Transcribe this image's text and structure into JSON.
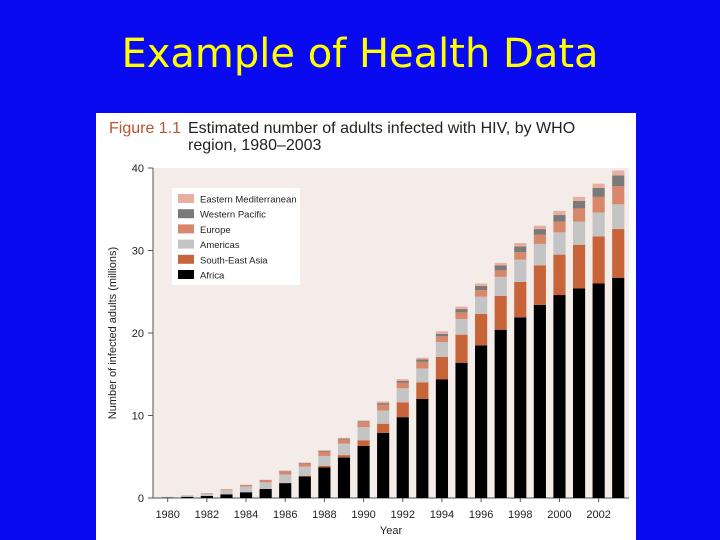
{
  "slide": {
    "title": "Example of Health Data"
  },
  "figure": {
    "label": "Figure 1.1",
    "caption": "Estimated number of adults infected with HIV, by WHO region, 1980–2003"
  },
  "colors": {
    "background": "#0a0af0",
    "title": "#ffff00",
    "plot_background": "#f3ece9"
  },
  "chart_data": {
    "type": "bar",
    "stacked": true,
    "title": "Estimated number of adults infected with HIV, by WHO region, 1980–2003",
    "xlabel": "Year",
    "ylabel": "Number of infected adults (millions)",
    "ylim": [
      0,
      40
    ],
    "yticks": [
      0,
      10,
      20,
      30,
      40
    ],
    "xtick_labels": [
      "1980",
      "1982",
      "1984",
      "1986",
      "1988",
      "1990",
      "1992",
      "1994",
      "1996",
      "1998",
      "2000",
      "2002"
    ],
    "categories": [
      "1980",
      "1981",
      "1982",
      "1983",
      "1984",
      "1985",
      "1986",
      "1987",
      "1988",
      "1989",
      "1990",
      "1991",
      "1992",
      "1993",
      "1994",
      "1995",
      "1996",
      "1997",
      "1998",
      "1999",
      "2000",
      "2001",
      "2002",
      "2003"
    ],
    "legend_position": "top-left",
    "grid": false,
    "series": [
      {
        "name": "Africa",
        "color": "#000000",
        "values": [
          0.05,
          0.15,
          0.25,
          0.45,
          0.7,
          1.1,
          1.8,
          2.6,
          3.7,
          4.9,
          6.3,
          7.9,
          9.8,
          12.0,
          14.4,
          16.4,
          18.5,
          20.4,
          21.9,
          23.4,
          24.6,
          25.4,
          26.0,
          26.7
        ]
      },
      {
        "name": "South-East Asia",
        "color": "#c8643a",
        "values": [
          0.0,
          0.0,
          0.0,
          0.0,
          0.0,
          0.0,
          0.05,
          0.1,
          0.2,
          0.3,
          0.7,
          1.1,
          1.8,
          2.0,
          2.7,
          3.4,
          3.8,
          4.1,
          4.3,
          4.8,
          4.9,
          5.3,
          5.7,
          5.9
        ]
      },
      {
        "name": "Americas",
        "color": "#c4c4c4",
        "values": [
          0.1,
          0.2,
          0.3,
          0.5,
          0.7,
          0.8,
          1.0,
          1.1,
          1.2,
          1.4,
          1.6,
          1.6,
          1.7,
          1.7,
          1.8,
          1.9,
          2.1,
          2.3,
          2.7,
          2.6,
          2.7,
          2.8,
          2.9,
          3.0
        ]
      },
      {
        "name": "Europe",
        "color": "#d9876a",
        "values": [
          0.0,
          0.0,
          0.05,
          0.1,
          0.2,
          0.3,
          0.4,
          0.4,
          0.5,
          0.5,
          0.6,
          0.7,
          0.7,
          0.8,
          0.7,
          0.8,
          0.8,
          0.8,
          0.9,
          1.1,
          1.3,
          1.6,
          1.9,
          2.2
        ]
      },
      {
        "name": "Western Pacific",
        "color": "#7a7a7a",
        "values": [
          0.0,
          0.0,
          0.0,
          0.0,
          0.0,
          0.0,
          0.05,
          0.05,
          0.1,
          0.1,
          0.1,
          0.2,
          0.2,
          0.3,
          0.3,
          0.4,
          0.5,
          0.6,
          0.7,
          0.7,
          0.8,
          0.9,
          1.1,
          1.3
        ]
      },
      {
        "name": "Eastern Mediterranean",
        "color": "#e8aea0",
        "values": [
          0.0,
          0.0,
          0.0,
          0.0,
          0.0,
          0.0,
          0.0,
          0.05,
          0.1,
          0.1,
          0.1,
          0.2,
          0.2,
          0.2,
          0.3,
          0.3,
          0.3,
          0.3,
          0.4,
          0.4,
          0.5,
          0.5,
          0.5,
          0.6
        ]
      }
    ]
  }
}
